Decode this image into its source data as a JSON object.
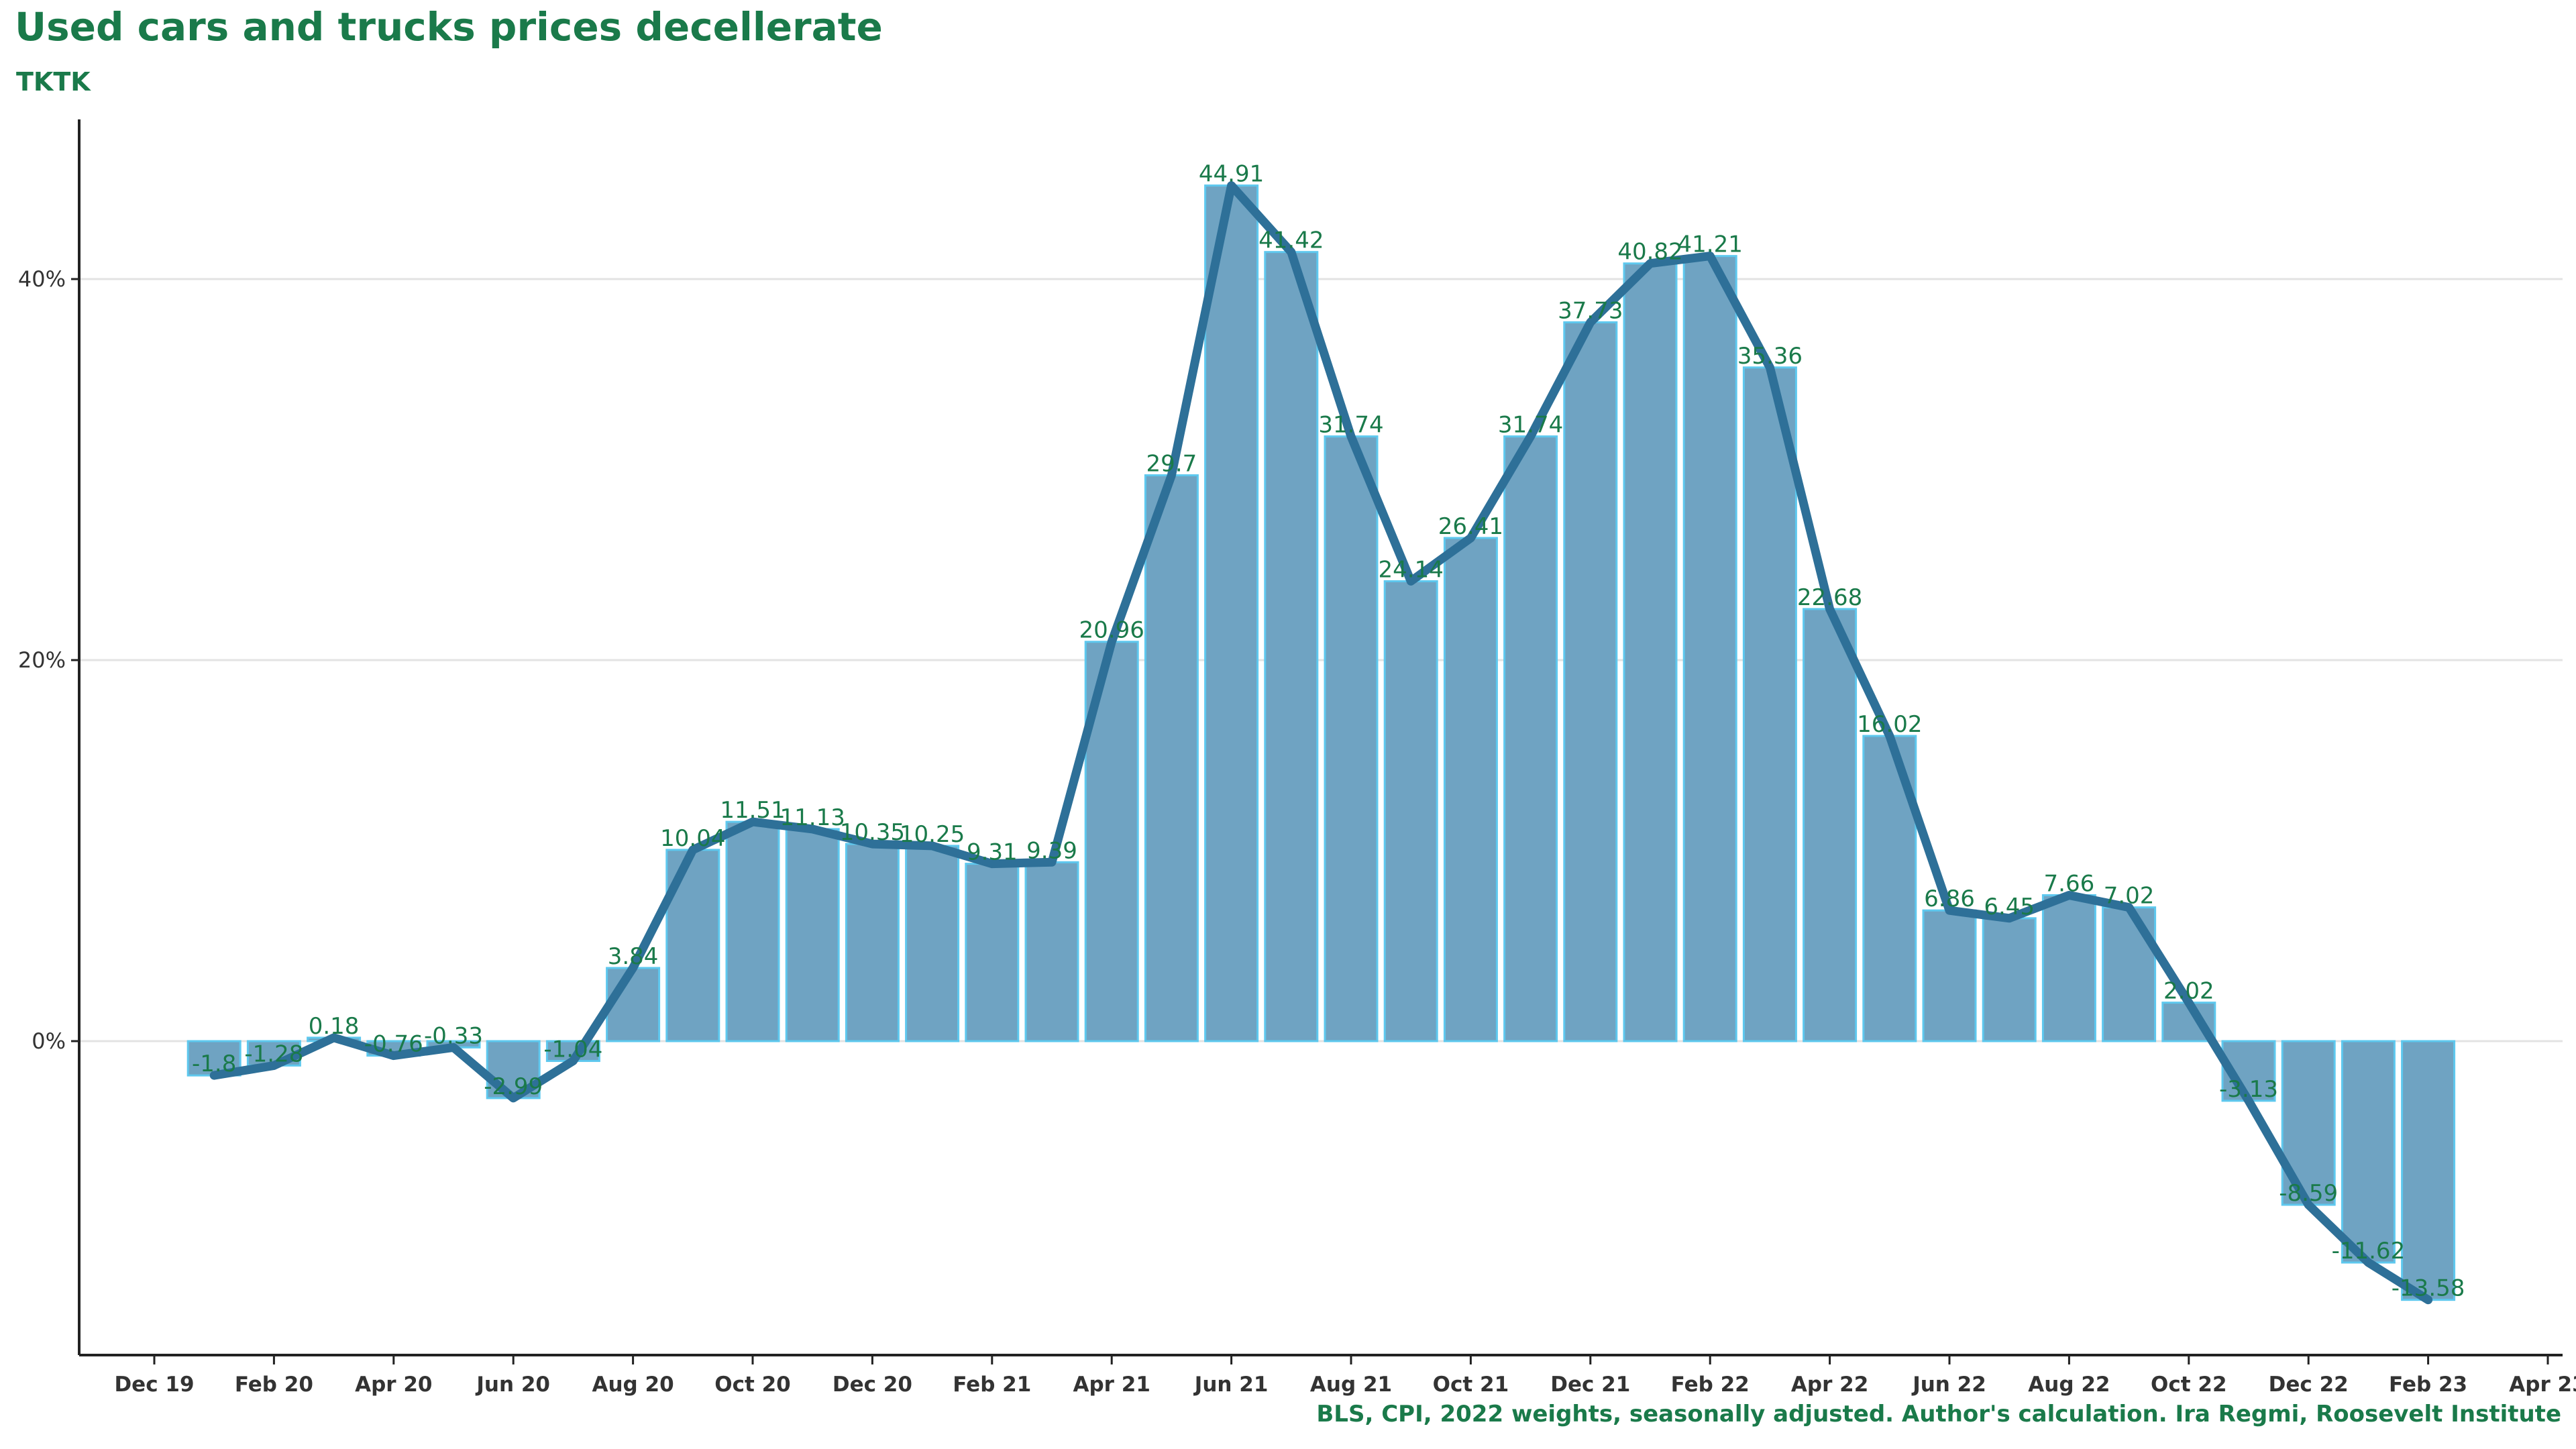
{
  "title": "Used cars and trucks prices decellerate",
  "subtitle": "TKTK",
  "caption": "BLS, CPI, 2022 weights, seasonally adjusted. Author's calculation. Ira Regmi, Roosevelt Institute",
  "colors": {
    "title": "#1a7a4a",
    "bar_fill": "#6fa3c2",
    "bar_stroke": "#5ec8ee",
    "line": "#2e7098",
    "label": "#1a7a4a",
    "grid": "#e3e3e3",
    "axis": "#222222"
  },
  "chart_data": {
    "type": "bar",
    "title": "Used cars and trucks prices decellerate",
    "subtitle": "TKTK",
    "xlabel": "",
    "ylabel": "",
    "ylim": [
      -16,
      48
    ],
    "grid": "horizontal",
    "y_ticks": [
      0,
      20,
      40
    ],
    "y_tick_labels": [
      "0%",
      "20%",
      "40%"
    ],
    "x_ticks": [
      "Dec 19",
      "Feb 20",
      "Apr 20",
      "Jun 20",
      "Aug 20",
      "Oct 20",
      "Dec 20",
      "Feb 21",
      "Apr 21",
      "Jun 21",
      "Aug 21",
      "Oct 21",
      "Dec 21",
      "Feb 22",
      "Apr 22",
      "Jun 22",
      "Aug 22",
      "Oct 22",
      "Dec 22",
      "Feb 23",
      "Apr 23"
    ],
    "x": [
      "Jan 20",
      "Feb 20",
      "Mar 20",
      "Apr 20",
      "May 20",
      "Jun 20",
      "Jul 20",
      "Aug 20",
      "Sep 20",
      "Oct 20",
      "Nov 20",
      "Dec 20",
      "Jan 21",
      "Feb 21",
      "Mar 21",
      "Apr 21",
      "May 21",
      "Jun 21",
      "Jul 21",
      "Aug 21",
      "Sep 21",
      "Oct 21",
      "Nov 21",
      "Dec 21",
      "Jan 22",
      "Feb 22",
      "Mar 22",
      "Apr 22",
      "May 22",
      "Jun 22",
      "Jul 22",
      "Aug 22",
      "Sep 22",
      "Oct 22",
      "Nov 22",
      "Dec 22",
      "Jan 23",
      "Feb 23"
    ],
    "values": [
      -1.8,
      -1.28,
      0.18,
      -0.76,
      -0.33,
      -2.99,
      -1.04,
      3.84,
      10.04,
      11.51,
      11.13,
      10.35,
      10.25,
      9.31,
      9.39,
      20.96,
      29.7,
      44.91,
      41.42,
      31.74,
      24.14,
      26.41,
      31.74,
      37.73,
      40.82,
      41.21,
      35.36,
      22.68,
      16.02,
      6.86,
      6.45,
      7.66,
      7.02,
      2.02,
      -3.13,
      -8.59,
      -11.62,
      -13.58
    ],
    "labels": [
      "-1.8",
      "-1.28",
      "0.18",
      "-0.76",
      "-0.33",
      "-2.99",
      "-1.04",
      "3.84",
      "10.04",
      "11.51",
      "11.13",
      "10.35",
      "10.25",
      "9.31",
      "9.39",
      "20.96",
      "29.7",
      "44.91",
      "41.42",
      "31.74",
      "24.14",
      "26.41",
      "31.74",
      "37.73",
      "40.82",
      "41.21",
      "35.36",
      "22.68",
      "16.02",
      "6.86",
      "6.45",
      "7.66",
      "7.02",
      "2.02",
      "-3.13",
      "-8.59",
      "-11.62",
      "-13.58"
    ],
    "overlay": "line"
  }
}
